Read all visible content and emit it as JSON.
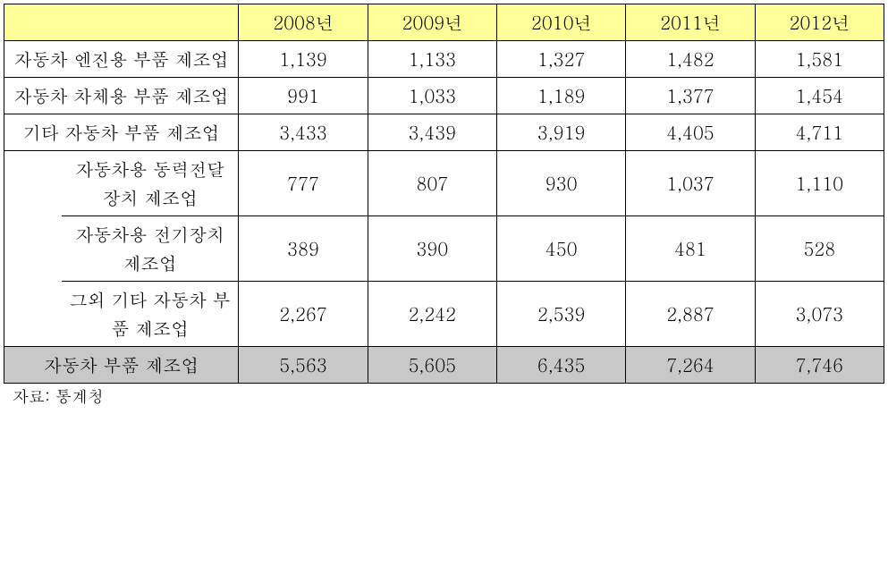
{
  "table": {
    "columns": [
      "2008년",
      "2009년",
      "2010년",
      "2011년",
      "2012년"
    ],
    "rows": [
      {
        "label": "자동차 엔진용 부품 제조업",
        "values": [
          "1,139",
          "1,133",
          "1,327",
          "1,482",
          "1,581"
        ],
        "indent": 0
      },
      {
        "label": "자동차 차체용 부품 제조업",
        "values": [
          "991",
          "1,033",
          "1,189",
          "1,377",
          "1,454"
        ],
        "indent": 0
      },
      {
        "label": "기타 자동차 부품 제조업",
        "values": [
          "3,433",
          "3,439",
          "3,919",
          "4,405",
          "4,711"
        ],
        "indent": 0
      },
      {
        "label": "자동차용 동력전달장치 제조업",
        "values": [
          "777",
          "807",
          "930",
          "1,037",
          "1,110"
        ],
        "indent": 1
      },
      {
        "label": "자동차용 전기장치 제조업",
        "values": [
          "389",
          "390",
          "450",
          "481",
          "528"
        ],
        "indent": 1
      },
      {
        "label": "그외 기타 자동차 부품 제조업",
        "values": [
          "2,267",
          "2,242",
          "2,539",
          "2,887",
          "3,073"
        ],
        "indent": 1
      }
    ],
    "total": {
      "label": "자동차 부품 제조업",
      "values": [
        "5,563",
        "5,605",
        "6,435",
        "7,264",
        "7,746"
      ]
    },
    "header_bg": "#ffff99",
    "total_bg": "#c8c8c8",
    "border_color": "#000000",
    "font_size": 20,
    "col_width_label": 270,
    "col_width_value": 143
  },
  "source": "자료: 통계청"
}
